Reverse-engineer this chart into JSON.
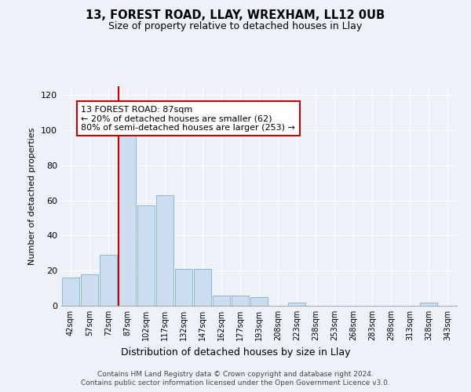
{
  "title": "13, FOREST ROAD, LLAY, WREXHAM, LL12 0UB",
  "subtitle": "Size of property relative to detached houses in Llay",
  "xlabel": "Distribution of detached houses by size in Llay",
  "ylabel": "Number of detached properties",
  "bin_labels": [
    "42sqm",
    "57sqm",
    "72sqm",
    "87sqm",
    "102sqm",
    "117sqm",
    "132sqm",
    "147sqm",
    "162sqm",
    "177sqm",
    "193sqm",
    "208sqm",
    "223sqm",
    "238sqm",
    "253sqm",
    "268sqm",
    "283sqm",
    "298sqm",
    "313sqm",
    "328sqm",
    "343sqm"
  ],
  "bar_heights": [
    16,
    18,
    29,
    98,
    57,
    63,
    21,
    21,
    6,
    6,
    5,
    0,
    2,
    0,
    0,
    0,
    0,
    0,
    0,
    2,
    0
  ],
  "bar_color": "#ccddf0",
  "bar_edge_color": "#7ab0d4",
  "highlight_bar_index": 3,
  "highlight_line_color": "#cc0000",
  "ylim": [
    0,
    125
  ],
  "yticks": [
    0,
    20,
    40,
    60,
    80,
    100,
    120
  ],
  "annotation_line1": "13 FOREST ROAD: 87sqm",
  "annotation_line2": "← 20% of detached houses are smaller (62)",
  "annotation_line3": "80% of semi-detached houses are larger (253) →",
  "annotation_box_color": "#ffffff",
  "annotation_box_edge_color": "#cc0000",
  "footnote1": "Contains HM Land Registry data © Crown copyright and database right 2024.",
  "footnote2": "Contains public sector information licensed under the Open Government Licence v3.0.",
  "background_color": "#eef2f8"
}
